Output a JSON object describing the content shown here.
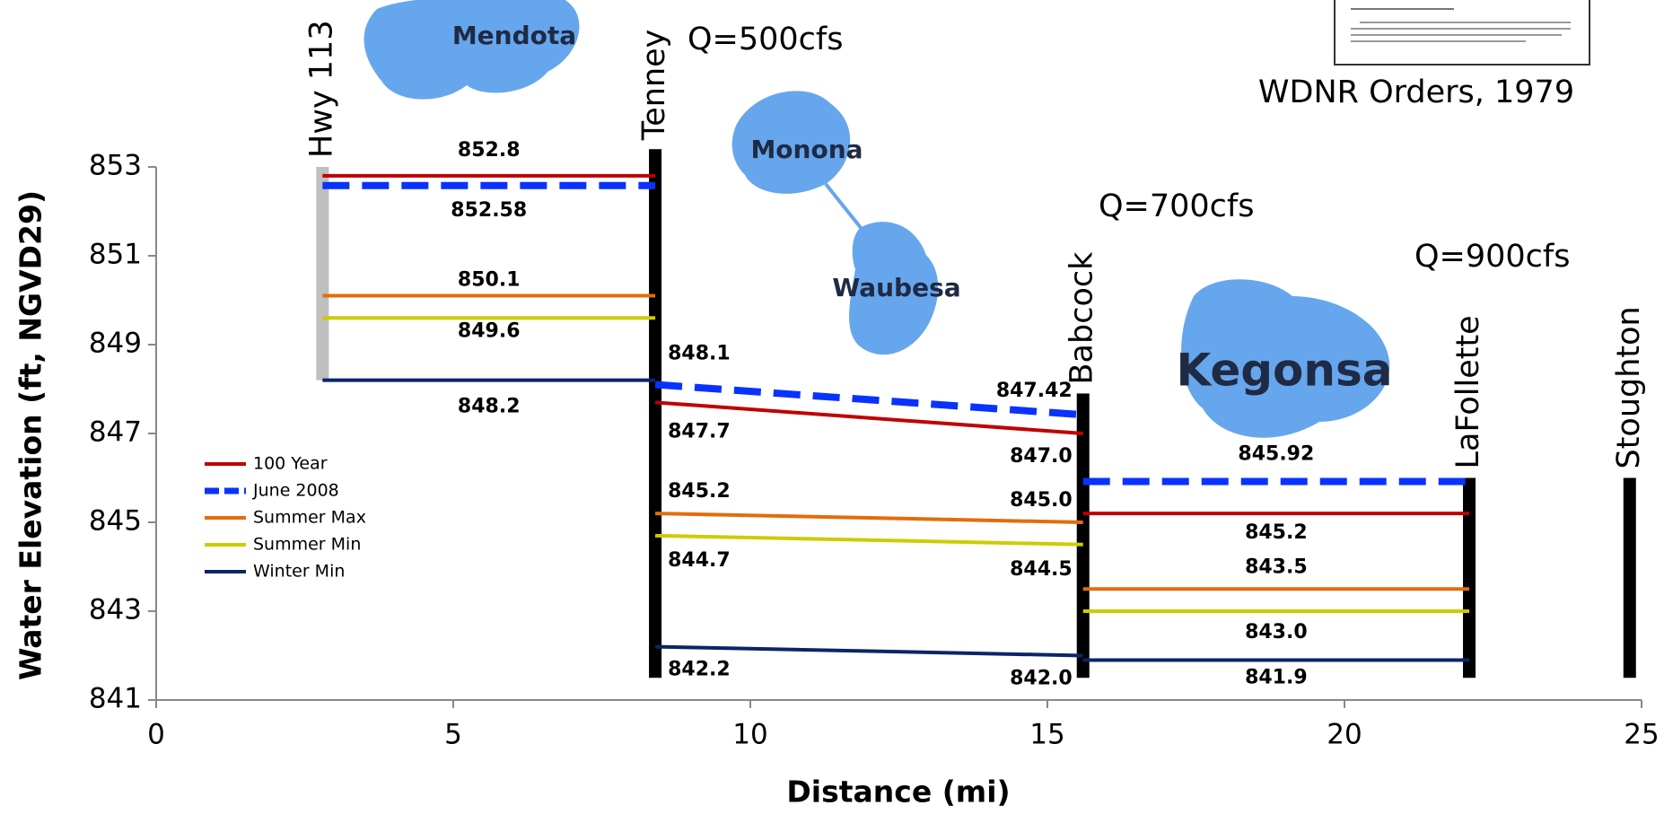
{
  "chart_data": {
    "type": "line",
    "xlabel": "Distance (mi)",
    "ylabel": "Water Elevation (ft, NGVD29)",
    "xlim": [
      0,
      25
    ],
    "xticks": [
      0,
      5,
      10,
      15,
      20,
      25
    ],
    "ylim": [
      841,
      853
    ],
    "yticks": [
      841,
      843,
      845,
      847,
      849,
      851,
      853
    ],
    "x": [
      2.8,
      8.4,
      8.4,
      8.4,
      15.6,
      15.6,
      15.6,
      22.1
    ],
    "series": [
      {
        "name": "100 Year",
        "color": "#c00000",
        "label_color": "#c00000",
        "dashed": false,
        "values": [
          852.8,
          852.8,
          null,
          847.7,
          847.0,
          null,
          845.2,
          845.2
        ],
        "value_labels": [
          "852.8",
          null,
          null,
          "847.7",
          "847.0",
          null,
          "845.2",
          null
        ]
      },
      {
        "name": "June 2008",
        "color": "#0a32ff",
        "label_color": "#7a2e2e",
        "dashed": true,
        "values": [
          852.58,
          852.58,
          null,
          848.1,
          847.42,
          null,
          845.92,
          845.92
        ],
        "value_labels": [
          "852.58",
          null,
          null,
          "848.1",
          "847.42",
          null,
          "845.92",
          null
        ]
      },
      {
        "name": "Summer Max",
        "color": "#e36c0a",
        "label_color": "#e36c0a",
        "dashed": false,
        "values": [
          850.1,
          850.1,
          null,
          845.2,
          845.0,
          null,
          843.5,
          843.5
        ],
        "value_labels": [
          "850.1",
          null,
          null,
          "845.2",
          "845.0",
          null,
          "843.5",
          null
        ]
      },
      {
        "name": "Summer Min",
        "color": "#cccc00",
        "label_color": "#c4c400",
        "dashed": false,
        "values": [
          849.6,
          849.6,
          null,
          844.7,
          844.5,
          null,
          843.0,
          843.0
        ],
        "value_labels": [
          "849.6",
          null,
          null,
          "844.7",
          "844.5",
          null,
          "843.0",
          null
        ]
      },
      {
        "name": "Winter Min",
        "color": "#0b2566",
        "label_color": "#0b2566",
        "dashed": false,
        "values": [
          848.2,
          848.2,
          null,
          842.2,
          842.0,
          null,
          841.9,
          841.9
        ],
        "value_labels": [
          "848.2",
          null,
          null,
          "842.2",
          "842.0",
          null,
          "841.9",
          null
        ]
      }
    ],
    "legend": "left",
    "stations": [
      {
        "name": "Hwy 113",
        "x": 2.8,
        "range": [
          848.2,
          853
        ],
        "color": "#bfbfbf"
      },
      {
        "name": "Tenney",
        "x": 8.4,
        "range": [
          841.5,
          853.4
        ],
        "color": "#000000"
      },
      {
        "name": "Babcock",
        "x": 15.6,
        "range": [
          841.5,
          847.9
        ],
        "color": "#000000"
      },
      {
        "name": "LaFollette",
        "x": 22.1,
        "range": [
          841.5,
          846
        ],
        "color": "#000000"
      },
      {
        "name": "Stoughton",
        "x": 24.8,
        "range": [
          841.5,
          846
        ],
        "color": "#000000"
      }
    ],
    "lakes": [
      "Mendota",
      "Monona",
      "Waubesa",
      "Kegonsa"
    ],
    "annotations": [
      "Q=500cfs",
      "Q=700cfs",
      "Q=900cfs",
      "WDNR Orders, 1979"
    ]
  }
}
